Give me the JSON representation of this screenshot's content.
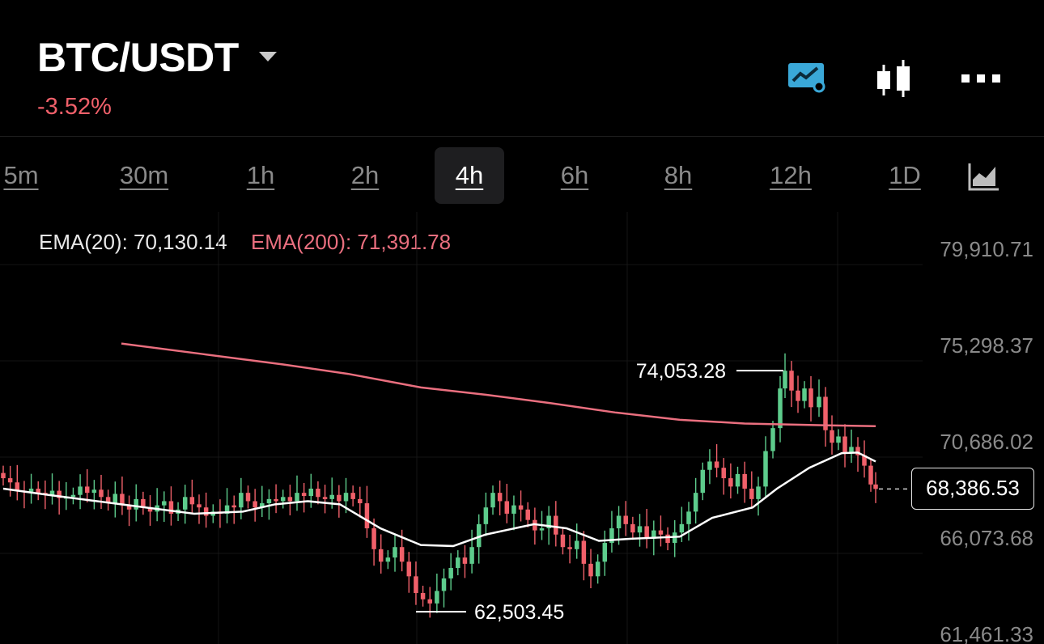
{
  "header": {
    "pair": "BTC/USDT",
    "change": "-3.52%",
    "change_color": "#f0606a",
    "icons": [
      "chart-indicator-icon",
      "candlestick-icon",
      "more-icon"
    ]
  },
  "timeframes": [
    {
      "label": "5m",
      "active": false
    },
    {
      "label": "30m",
      "active": false
    },
    {
      "label": "1h",
      "active": false
    },
    {
      "label": "2h",
      "active": false
    },
    {
      "label": "4h",
      "active": true
    },
    {
      "label": "6h",
      "active": false
    },
    {
      "label": "8h",
      "active": false
    },
    {
      "label": "12h",
      "active": false
    },
    {
      "label": "1D",
      "active": false
    }
  ],
  "legend": {
    "ema20": "EMA(20): 70,130.14",
    "ema200": "EMA(200): 71,391.78"
  },
  "colors": {
    "up": "#5dcc8c",
    "down": "#f0606a",
    "ema20": "#ffffff",
    "ema200": "#ea6f7f",
    "accent": "#3aa8d8"
  },
  "chart_data": {
    "type": "candlestick",
    "y_ticks": [
      "79,910.71",
      "75,298.37",
      "70,686.02",
      "66,073.68",
      "61,461.33"
    ],
    "y_tick_values": [
      79910.71,
      75298.37,
      70686.02,
      66073.68,
      61461.33
    ],
    "current_price_label": "68,386.53",
    "current_price": 68386.53,
    "high_label": "74,053.28",
    "high_value": 74053.28,
    "low_label": "62,503.45",
    "low_value": 62503.45,
    "ema200_start": 75350,
    "ema200_end": 71391.78,
    "ema20_end": 70130.14
  }
}
